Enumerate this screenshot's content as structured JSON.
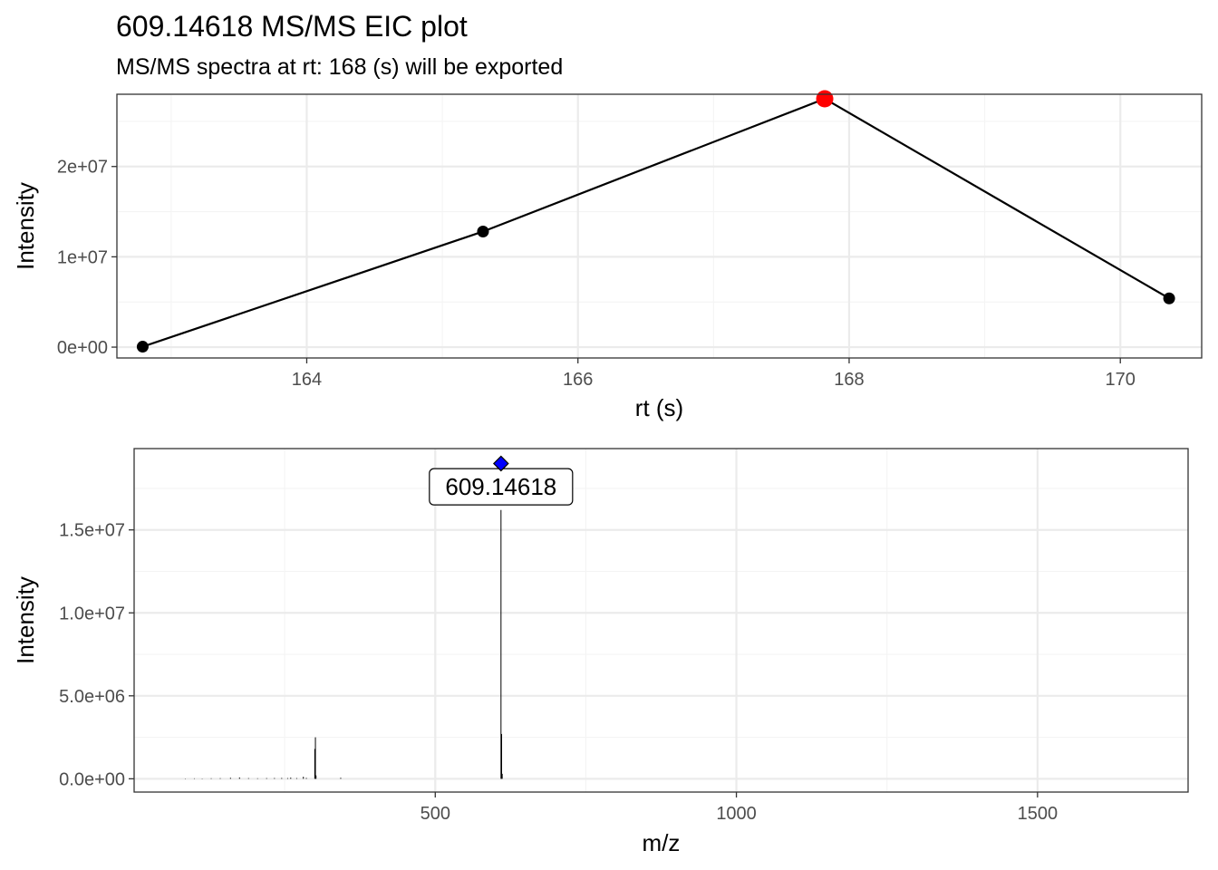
{
  "figure": {
    "title": "609.14618 MS/MS EIC plot",
    "subtitle": "MS/MS spectra at rt: 168 (s) will be exported"
  },
  "colors": {
    "line": "#000000",
    "point": "#000000",
    "highlight_point": "#ff0000",
    "precursor_marker": "#0000ff",
    "grid_major": "#ebebeb",
    "grid_minor": "#f4f4f4",
    "panel_border": "#333333",
    "tick_text": "#4d4d4d"
  },
  "chart_data": [
    {
      "type": "line",
      "xlabel": "rt (s)",
      "ylabel": "Intensity",
      "xlim": [
        162.6,
        170.6
      ],
      "ylim": [
        -1200000,
        28000000
      ],
      "x_ticks": [
        164,
        166,
        168,
        170
      ],
      "x_tick_labels": [
        "164",
        "166",
        "168",
        "170"
      ],
      "y_ticks": [
        0,
        10000000,
        20000000
      ],
      "y_tick_labels": [
        "0e+00",
        "1e+07",
        "2e+07"
      ],
      "grid": true,
      "series": [
        {
          "x": [
            162.79,
            165.3,
            167.82,
            170.36
          ],
          "y": [
            50000,
            12800000,
            27500000,
            5400000
          ]
        }
      ],
      "highlight": {
        "x": 167.82,
        "y": 27500000
      }
    },
    {
      "type": "bar",
      "subtype": "spectrum",
      "xlabel": "m/z",
      "ylabel": "Intensity",
      "xlim": [
        0,
        1750
      ],
      "ylim": [
        -800000,
        19900000
      ],
      "x_ticks": [
        500,
        1000,
        1500
      ],
      "x_tick_labels": [
        "500",
        "1000",
        "1500"
      ],
      "y_ticks": [
        0,
        5000000,
        10000000,
        15000000
      ],
      "y_tick_labels": [
        "0.0e+00",
        "5.0e+06",
        "1.0e+07",
        "1.5e+07"
      ],
      "grid": true,
      "peaks": [
        {
          "mz": 85,
          "intensity": 20000
        },
        {
          "mz": 100,
          "intensity": 25000
        },
        {
          "mz": 113,
          "intensity": 20000
        },
        {
          "mz": 128,
          "intensity": 30000
        },
        {
          "mz": 143,
          "intensity": 35000
        },
        {
          "mz": 160,
          "intensity": 60000
        },
        {
          "mz": 175,
          "intensity": 80000
        },
        {
          "mz": 190,
          "intensity": 40000
        },
        {
          "mz": 205,
          "intensity": 30000
        },
        {
          "mz": 220,
          "intensity": 40000
        },
        {
          "mz": 233,
          "intensity": 45000
        },
        {
          "mz": 245,
          "intensity": 50000
        },
        {
          "mz": 255,
          "intensity": 40000
        },
        {
          "mz": 260,
          "intensity": 70000
        },
        {
          "mz": 270,
          "intensity": 40000
        },
        {
          "mz": 281,
          "intensity": 120000
        },
        {
          "mz": 286,
          "intensity": 50000
        },
        {
          "mz": 300,
          "intensity": 1800000
        },
        {
          "mz": 301,
          "intensity": 2500000
        },
        {
          "mz": 302,
          "intensity": 200000
        },
        {
          "mz": 343,
          "intensity": 60000
        },
        {
          "mz": 609.146,
          "intensity": 16200000
        },
        {
          "mz": 610.15,
          "intensity": 2700000
        },
        {
          "mz": 611.15,
          "intensity": 300000
        }
      ],
      "precursor": {
        "mz": 609.14618,
        "marker_intensity": 19000000
      },
      "annotation": {
        "label": "609.14618",
        "mz": 609.14618,
        "intensity": 17600000
      }
    }
  ]
}
